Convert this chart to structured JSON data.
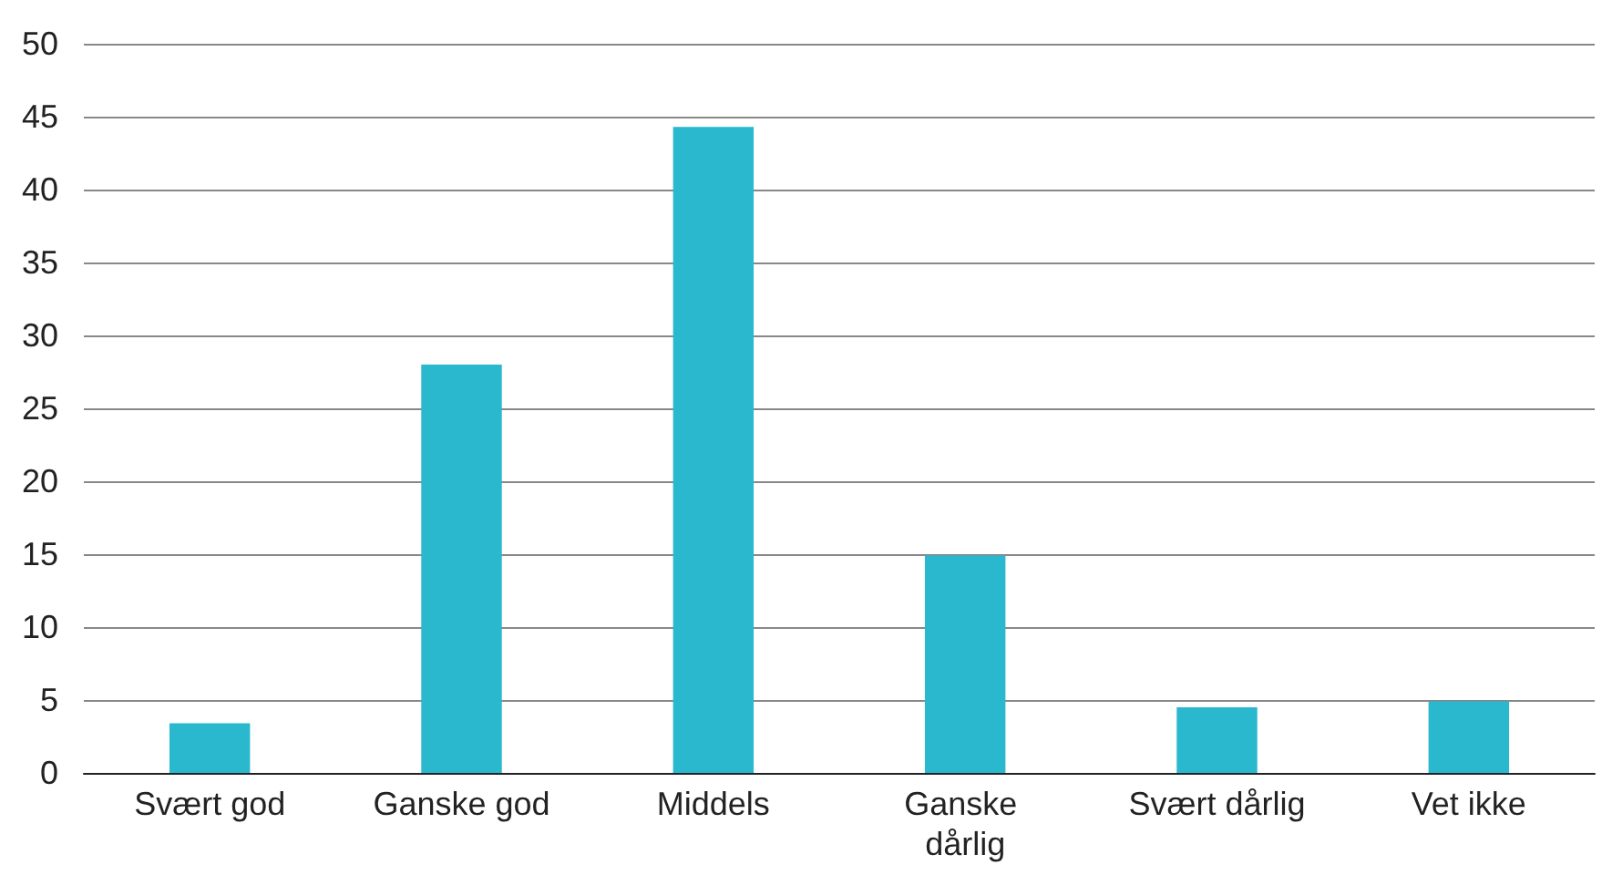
{
  "chart_data": {
    "type": "bar",
    "categories": [
      "Svært god",
      "Ganske god",
      "Middels",
      "Ganske dårlig",
      "Svært dårlig",
      "Vet ikke"
    ],
    "values": [
      3.4,
      28,
      44.3,
      14.9,
      4.5,
      4.9
    ],
    "color": "#2ab8cf",
    "ylim": [
      0,
      50
    ],
    "yticks": [
      0,
      5,
      10,
      15,
      20,
      25,
      30,
      35,
      40,
      45,
      50
    ],
    "grid": "y"
  }
}
